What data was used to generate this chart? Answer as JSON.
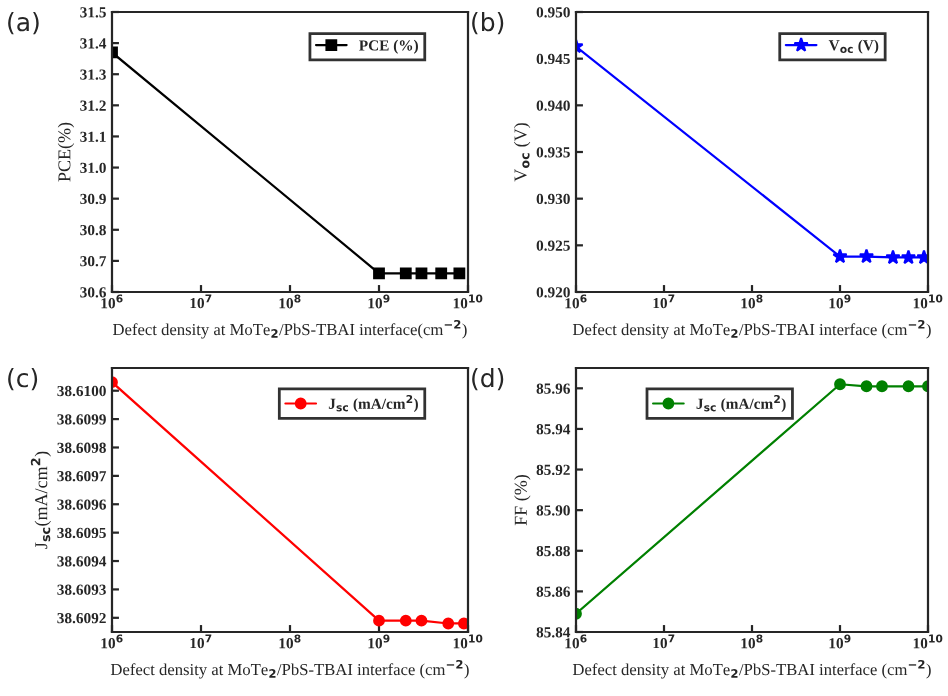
{
  "chart_data": [
    {
      "type": "line",
      "title": "(a)",
      "xlabel": "Defect density at MoTe$_{2}$/PbS-TBAI interface(cm$^{−2}$)",
      "ylabel": "PCE(%)",
      "log": "x",
      "x": [
        1000000,
        1000000000,
        2000000000,
        3000000000,
        5000000000,
        8000000000
      ],
      "series": [
        {
          "name": "PCE (%)",
          "color": "#000000",
          "values": [
            31.37,
            30.66,
            30.66,
            30.66,
            30.66,
            30.66
          ]
        }
      ],
      "marker": "square",
      "legend": "top right",
      "grid": false,
      "xlim": [
        1000000,
        10000000000
      ],
      "ylim": [
        30.6,
        31.5
      ],
      "xticks": [
        {
          "value": 1000000,
          "label": "10$^{6}$"
        },
        {
          "value": 10000000,
          "label": "10$^{7}$"
        },
        {
          "value": 100000000,
          "label": "10$^{8}$"
        },
        {
          "value": 1000000000,
          "label": "10$^{9}$"
        },
        {
          "value": 10000000000,
          "label": "10$^{10}$"
        }
      ],
      "yticks": [
        30.6,
        30.7,
        30.8,
        30.9,
        {
          "value": 31.0,
          "label": "31.0"
        },
        31.1,
        31.2,
        31.3,
        31.4,
        31.5
      ]
    },
    {
      "type": "line",
      "title": "(b)",
      "xlabel": "Defect density at MoTe$_{2}$/PbS-TBAI interface (cm$^{−2}$)",
      "ylabel": "V$_{oc}$ (V)",
      "log": "x",
      "x": [
        1000000,
        1000000000,
        2000000000,
        4000000000,
        6000000000,
        9000000000
      ],
      "series": [
        {
          "name": "V$_{oc}$ (V)",
          "color": "#0000ff",
          "values": [
            0.9463,
            0.9238,
            0.9238,
            0.9237,
            0.9237,
            0.9237
          ]
        }
      ],
      "marker": "star",
      "legend": "top right",
      "grid": false,
      "xlim": [
        1000000,
        10000000000
      ],
      "ylim": [
        0.92,
        0.95
      ],
      "xticks": [
        {
          "value": 1000000,
          "label": "10$^{6}$"
        },
        {
          "value": 10000000,
          "label": "10$^{7}$"
        },
        {
          "value": 100000000,
          "label": "10$^{8}$"
        },
        {
          "value": 1000000000,
          "label": "10$^{9}$"
        },
        {
          "value": 10000000000,
          "label": "10$^{10}$"
        }
      ],
      "yticks": [
        {
          "value": 0.92,
          "label": "0.920"
        },
        {
          "value": 0.925,
          "label": "0.925"
        },
        {
          "value": 0.93,
          "label": "0.930"
        },
        {
          "value": 0.935,
          "label": "0.935"
        },
        {
          "value": 0.94,
          "label": "0.940"
        },
        {
          "value": 0.945,
          "label": "0.945"
        },
        {
          "value": 0.95,
          "label": "0.950"
        }
      ]
    },
    {
      "type": "line",
      "title": "(c)",
      "xlabel": "Defect density at MoTe$_{2}$/PbS-TBAI interface (cm$^{−2}$)",
      "ylabel": "J$_{sc}$(mA/cm$^{2}$)",
      "log": "x",
      "x": [
        1000000,
        1000000000,
        2000000000,
        3000000000,
        6000000000,
        9000000000
      ],
      "series": [
        {
          "name": "J$_{sc}$ (mA/cm$^{2}$)",
          "color": "#ff0000",
          "values": [
            38.61003,
            38.60919,
            38.60919,
            38.60919,
            38.60918,
            38.60918
          ]
        }
      ],
      "marker": "circle",
      "legend": "top right",
      "grid": false,
      "xlim": [
        1000000,
        10000000000
      ],
      "ylim": [
        38.60915,
        38.61008
      ],
      "xticks": [
        {
          "value": 1000000,
          "label": "10$^{6}$"
        },
        {
          "value": 10000000,
          "label": "10$^{7}$"
        },
        {
          "value": 100000000,
          "label": "10$^{8}$"
        },
        {
          "value": 1000000000,
          "label": "10$^{9}$"
        },
        {
          "value": 10000000000,
          "label": "10$^{10}$"
        }
      ],
      "yticks": [
        38.6092,
        38.6093,
        38.6094,
        38.6095,
        38.6096,
        38.6097,
        38.6098,
        38.6099,
        {
          "value": 38.61,
          "label": "38.6100"
        }
      ]
    },
    {
      "type": "line",
      "title": "(d)",
      "xlabel": "Defect density at MoTe$_{2}$/PbS-TBAI interface (cm$^{−2}$)",
      "ylabel": "FF (%)",
      "log": "x",
      "x": [
        1000000,
        1000000000,
        2000000000,
        3000000000,
        6000000000,
        10000000000
      ],
      "series": [
        {
          "name": "J$_{sc}$ (mA/cm$^{2}$)",
          "color": "#008000",
          "values": [
            85.849,
            85.962,
            85.961,
            85.961,
            85.961,
            85.961
          ]
        }
      ],
      "marker": "circle",
      "legend": "top left",
      "grid": false,
      "xlim": [
        1000000,
        10000000000
      ],
      "ylim": [
        85.84,
        85.97
      ],
      "xticks": [
        {
          "value": 1000000,
          "label": "10$^{6}$"
        },
        {
          "value": 10000000,
          "label": "10$^{7}$"
        },
        {
          "value": 100000000,
          "label": "10$^{8}$"
        },
        {
          "value": 1000000000,
          "label": "10$^{9}$"
        },
        {
          "value": 10000000000,
          "label": "10$^{10}$"
        }
      ],
      "yticks": [
        {
          "value": 85.84,
          "label": "85.84"
        },
        {
          "value": 85.86,
          "label": "85.86"
        },
        {
          "value": 85.88,
          "label": "85.88"
        },
        {
          "value": 85.9,
          "label": "85.90"
        },
        {
          "value": 85.92,
          "label": "85.92"
        },
        {
          "value": 85.94,
          "label": "85.94"
        },
        {
          "value": 85.96,
          "label": "85.96"
        }
      ]
    }
  ]
}
